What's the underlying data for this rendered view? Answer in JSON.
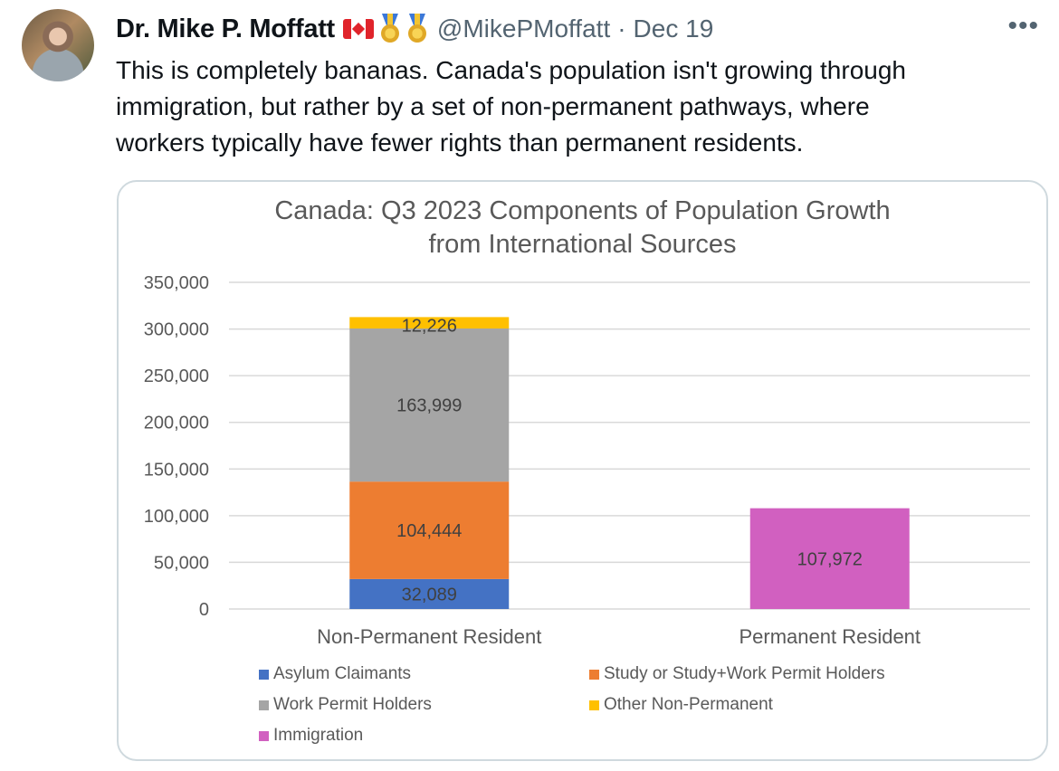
{
  "tweet": {
    "author_name": "Dr. Mike P. Moffatt",
    "handle": "@MikePMoffatt",
    "separator": "·",
    "date": "Dec 19",
    "more_label": "•••",
    "text": "This is completely bananas. Canada's population isn't growing through\nimmigration, but rather by a set of non-permanent pathways, where\nworkers typically have fewer rights than permanent residents.",
    "badges": [
      "canada-flag-icon",
      "medal-icon",
      "medal-icon"
    ]
  },
  "chart_data": {
    "type": "bar",
    "stacked": true,
    "title_line1": "Canada: Q3 2023 Components of Population Growth",
    "title_line2": "from International Sources",
    "categories": [
      "Non-Permanent Resident",
      "Permanent Resident"
    ],
    "ylim": [
      0,
      350000
    ],
    "yticks": [
      "350,000",
      "300,000",
      "250,000",
      "200,000",
      "150,000",
      "100,000",
      "50,000",
      "0"
    ],
    "ytick_values": [
      350000,
      300000,
      250000,
      200000,
      150000,
      100000,
      50000,
      0
    ],
    "grid": true,
    "legend_position": "bottom",
    "series": [
      {
        "name": "Asylum Claimants",
        "color": "#4472c4",
        "values": [
          32089,
          0
        ],
        "labels": [
          "32,089",
          ""
        ]
      },
      {
        "name": "Study or Study+Work Permit Holders",
        "color": "#ed7d31",
        "values": [
          104444,
          0
        ],
        "labels": [
          "104,444",
          ""
        ]
      },
      {
        "name": "Work Permit Holders",
        "color": "#a5a5a5",
        "values": [
          163999,
          0
        ],
        "labels": [
          "163,999",
          ""
        ]
      },
      {
        "name": "Other Non-Permanent",
        "color": "#ffc000",
        "values": [
          12226,
          0
        ],
        "labels": [
          "12,226",
          ""
        ]
      },
      {
        "name": "Immigration",
        "color": "#d160c0",
        "values": [
          0,
          107972
        ],
        "labels": [
          "",
          "107,972"
        ]
      }
    ]
  }
}
